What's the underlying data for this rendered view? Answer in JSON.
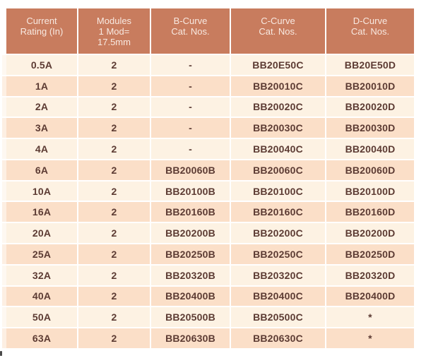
{
  "table": {
    "headers": [
      "Current\nRating (In)",
      "Modules\n1 Mod=\n17.5mm",
      "B-Curve\nCat. Nos.",
      "C-Curve\nCat. Nos.",
      "D-Curve\nCat. Nos."
    ],
    "rows": [
      [
        "0.5A",
        "2",
        "-",
        "BB20E50C",
        "BB20E50D"
      ],
      [
        "1A",
        "2",
        "-",
        "BB20010C",
        "BB20010D"
      ],
      [
        "2A",
        "2",
        "-",
        "BB20020C",
        "BB20020D"
      ],
      [
        "3A",
        "2",
        "-",
        "BB20030C",
        "BB20030D"
      ],
      [
        "4A",
        "2",
        "-",
        "BB20040C",
        "BB20040D"
      ],
      [
        "6A",
        "2",
        "BB20060B",
        "BB20060C",
        "BB20060D"
      ],
      [
        "10A",
        "2",
        "BB20100B",
        "BB20100C",
        "BB20100D"
      ],
      [
        "16A",
        "2",
        "BB20160B",
        "BB20160C",
        "BB20160D"
      ],
      [
        "20A",
        "2",
        "BB20200B",
        "BB20200C",
        "BB20200D"
      ],
      [
        "25A",
        "2",
        "BB20250B",
        "BB20250C",
        "BB20250D"
      ],
      [
        "32A",
        "2",
        "BB20320B",
        "BB20320C",
        "BB20320D"
      ],
      [
        "40A",
        "2",
        "BB20400B",
        "BB20400C",
        "BB20400D"
      ],
      [
        "50A",
        "2",
        "BB20500B",
        "BB20500C",
        "*"
      ],
      [
        "63A",
        "2",
        "BB20630B",
        "BB20630C",
        "*"
      ]
    ]
  },
  "colors": {
    "header_bg": "#C87C5E",
    "header_text": "#F8E9E1",
    "row_light": "#FDF2E3",
    "row_dark": "#FBDFC8",
    "body_text": "#5C3B33",
    "grid_line": "#FFFFFF",
    "page_bg": "#FFFFFF",
    "artifact": "#4A4A4A"
  }
}
